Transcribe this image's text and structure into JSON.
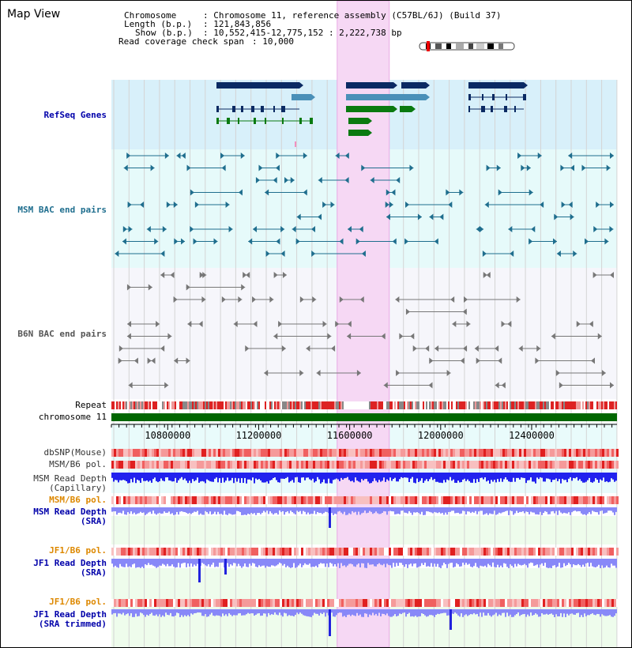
{
  "view_title": "Map View",
  "info": {
    "chromosome_label": "Chromosome    ",
    "chromosome_value": ": Chromosome 11, reference assembly (C57BL/6J) (Build 37)",
    "length_label": "Length (b.p.)",
    "length_value": ": 121,843,856",
    "show_label": "Show (b.p.)",
    "show_value": ": 10,552,415-12,775,152 : 2,222,738 bp",
    "coverage_label": "Read coverage check span",
    "coverage_value": ": 10,000"
  },
  "tracks": {
    "refseq": "RefSeq Genes",
    "msm_bac": "MSM BAC end pairs",
    "b6n_bac": "B6N BAC end pairs",
    "repeat": "Repeat",
    "chromosome": "chromosome 11",
    "dbsnp": "dbSNP(Mouse)",
    "msm_b6_pol_1": "MSM/B6 pol.",
    "msm_read_depth_cap_1": "MSM Read Depth",
    "msm_read_depth_cap_2": "(Capillary)",
    "msm_b6_pol_2": "MSM/B6 pol.",
    "msm_read_depth_sra_1": "MSM Read Depth",
    "msm_read_depth_sra_2": "(SRA)",
    "jf1_b6_pol_1": "JF1/B6 pol.",
    "jf1_read_depth_sra_1": "JF1 Read Depth",
    "jf1_read_depth_sra_2": "(SRA)",
    "jf1_b6_pol_2": "JF1/B6 pol.",
    "jf1_read_depth_trim_1": "JF1 Read Depth",
    "jf1_read_depth_trim_2": "(SRA trimmed)"
  },
  "axis": {
    "ticks": [
      "10800000",
      "11200000",
      "11600000",
      "12000000",
      "12400000"
    ],
    "tick_values": [
      10800000,
      11200000,
      11600000,
      12000000,
      12400000
    ],
    "range": [
      10552415,
      12775152
    ]
  },
  "highlight_region": [
    11545000,
    11774000
  ],
  "colors": {
    "refseq_bg": "#d8f0fa",
    "bac_bg": "#e6fafa",
    "b6n_bg": "#f6f6fb",
    "highlight": "#f6d8f4",
    "gene_dark": "#0b2a63",
    "gene_mid": "#4a90b8",
    "gene_green": "#0a7a10",
    "msm_feature": "#1f6e8e",
    "b6n_feature": "#777777",
    "chromosome_bar": "#006600",
    "depth_blue": "#2222ee",
    "depth_light": "#8888f8"
  }
}
